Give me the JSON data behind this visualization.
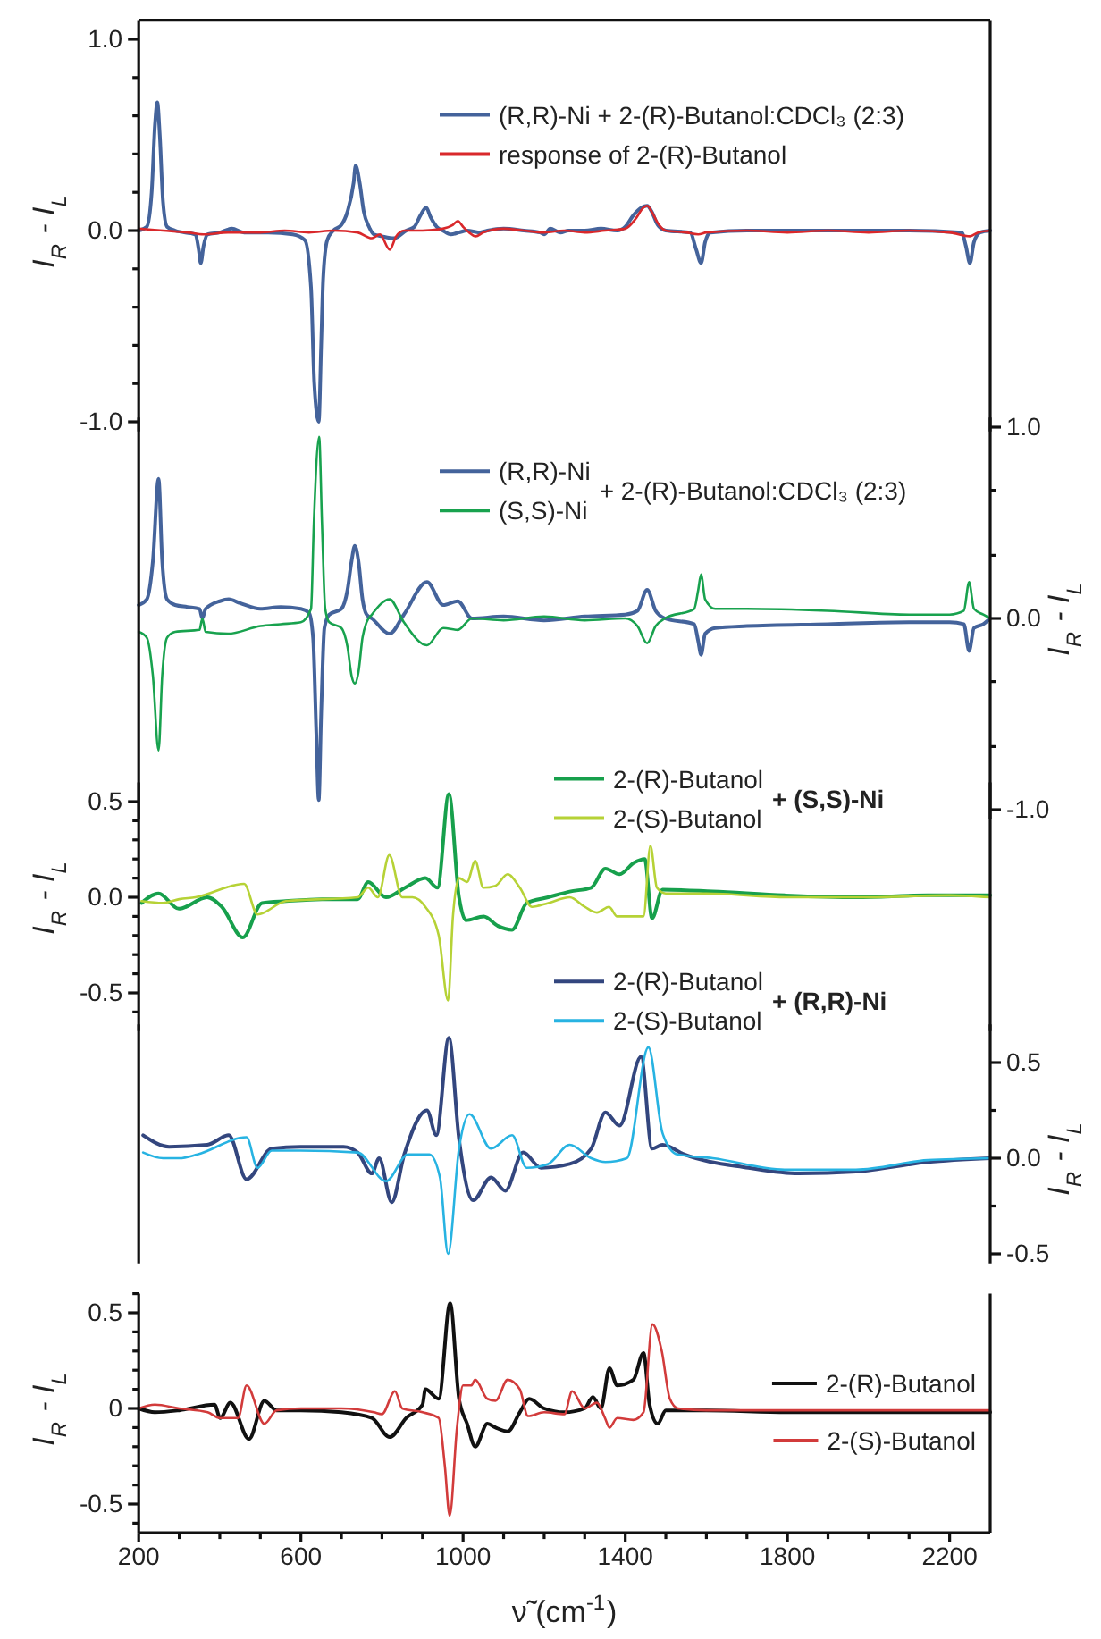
{
  "chart_data": [
    {
      "type": "line",
      "ylabel": "I$_{R}$ - I$_{L}$",
      "xlim": [
        200,
        2300
      ],
      "ylim": [
        -1.05,
        1.1
      ],
      "tick_labels": "y",
      "legend": "top right",
      "yticks": [
        {
          "value": -1.0,
          "label": "-1.0"
        },
        {
          "value": -0.8,
          "label": null
        },
        {
          "value": -0.6,
          "label": null
        },
        {
          "value": -0.4,
          "label": null
        },
        {
          "value": -0.2,
          "label": null
        },
        {
          "value": 0,
          "label": "0.0"
        },
        {
          "value": 0.2,
          "label": null
        },
        {
          "value": 0.4,
          "label": null
        },
        {
          "value": 0.6,
          "label": null
        },
        {
          "value": 0.8,
          "label": null
        },
        {
          "value": 1.0,
          "label": "1.0"
        }
      ],
      "series": [
        {
          "name": "(R,R)-Ni + 2-(R)-Butanol:CDCl₃ (2:3)",
          "color": "#44639b",
          "x": [
            200,
            220,
            232,
            240,
            246,
            252,
            260,
            270,
            290,
            340,
            348,
            353,
            360,
            370,
            400,
            430,
            460,
            520,
            580,
            610,
            625,
            633,
            644,
            650,
            655,
            665,
            680,
            700,
            715,
            730,
            735,
            745,
            755,
            768,
            780,
            800,
            830,
            860,
            880,
            895,
            909,
            920,
            935,
            950,
            970,
            990,
            1010,
            1040,
            1060,
            1100,
            1150,
            1190,
            1200,
            1215,
            1240,
            1260,
            1300,
            1340,
            1380,
            1400,
            1420,
            1440,
            1454,
            1465,
            1480,
            1500,
            1560,
            1575,
            1587,
            1597,
            1610,
            1700,
            1900,
            2100,
            2230,
            2240,
            2250,
            2260,
            2275,
            2300
          ],
          "values": [
            0.0,
            0.02,
            0.2,
            0.55,
            0.67,
            0.5,
            0.15,
            0.02,
            0.0,
            -0.02,
            -0.1,
            -0.17,
            -0.08,
            -0.02,
            -0.01,
            0.01,
            -0.01,
            -0.01,
            -0.02,
            -0.05,
            -0.3,
            -0.8,
            -1.0,
            -0.6,
            -0.25,
            -0.05,
            0.0,
            0.03,
            0.1,
            0.25,
            0.34,
            0.25,
            0.1,
            0.02,
            -0.02,
            -0.03,
            -0.04,
            0.0,
            0.02,
            0.08,
            0.12,
            0.07,
            0.02,
            0.0,
            -0.02,
            -0.01,
            0.0,
            -0.01,
            0.0,
            0.01,
            0.0,
            -0.01,
            -0.02,
            0.01,
            -0.01,
            0.0,
            0.0,
            0.01,
            0.0,
            0.02,
            0.08,
            0.12,
            0.13,
            0.1,
            0.03,
            0.0,
            -0.01,
            -0.1,
            -0.17,
            -0.06,
            -0.01,
            0.0,
            0.0,
            0.0,
            -0.01,
            -0.08,
            -0.17,
            -0.06,
            -0.01,
            0.0
          ]
        },
        {
          "name": "response of 2-(R)-Butanol",
          "color": "#d9282b",
          "x": [
            200,
            260,
            320,
            360,
            420,
            500,
            560,
            620,
            680,
            740,
            775,
            795,
            819,
            835,
            855,
            900,
            950,
            975,
            987,
            1000,
            1015,
            1031,
            1050,
            1100,
            1150,
            1200,
            1250,
            1300,
            1350,
            1400,
            1425,
            1445,
            1454,
            1465,
            1480,
            1500,
            1550,
            1580,
            1600,
            1700,
            1800,
            1900,
            2000,
            2100,
            2200,
            2250,
            2270,
            2300
          ],
          "values": [
            0.01,
            0.0,
            -0.01,
            -0.02,
            -0.01,
            -0.01,
            0.0,
            -0.01,
            0.0,
            -0.01,
            -0.04,
            -0.02,
            -0.1,
            -0.03,
            0.0,
            0.0,
            0.01,
            0.03,
            0.05,
            0.02,
            -0.01,
            -0.03,
            -0.01,
            0.01,
            0.0,
            -0.01,
            0.0,
            -0.01,
            0.0,
            0.01,
            0.06,
            0.12,
            0.13,
            0.1,
            0.04,
            0.0,
            -0.01,
            -0.02,
            -0.01,
            0.0,
            -0.01,
            0.0,
            -0.01,
            0.0,
            -0.01,
            -0.03,
            -0.01,
            0.0
          ]
        }
      ]
    },
    {
      "type": "line",
      "ylabel": "I$_{R}$ - I$_{L}$",
      "xlim": [
        200,
        2300
      ],
      "ylim": [
        -1.05,
        1.05
      ],
      "tick_labels": "y",
      "legend": "top",
      "annotations": [
        "+ 2-(R)-Butanol:CDCl₃ (2:3)"
      ],
      "yticks": [
        {
          "value": -1.0,
          "label": "-1.0"
        },
        {
          "value": -0.67,
          "label": null
        },
        {
          "value": -0.33,
          "label": null
        },
        {
          "value": 0,
          "label": "0.0"
        },
        {
          "value": 0.33,
          "label": null
        },
        {
          "value": 0.67,
          "label": null
        },
        {
          "value": 1.0,
          "label": "1.0"
        }
      ],
      "series": [
        {
          "name": "(R,R)-Ni",
          "color": "#44639b",
          "x": [
            200,
            220,
            235,
            249,
            258,
            270,
            290,
            320,
            350,
            357,
            365,
            400,
            422,
            450,
            500,
            550,
            600,
            620,
            630,
            638,
            644,
            650,
            658,
            670,
            700,
            715,
            725,
            733,
            742,
            752,
            762,
            775,
            819,
            854,
            911,
            951,
            987,
            1022,
            1100,
            1200,
            1300,
            1400,
            1430,
            1454,
            1475,
            1498,
            1570,
            1580,
            1587,
            1597,
            1622,
            1700,
            1900,
            2100,
            2200,
            2235,
            2248,
            2260,
            2283,
            2300
          ],
          "values": [
            0.07,
            0.1,
            0.3,
            0.73,
            0.3,
            0.1,
            0.07,
            0.06,
            0.05,
            0.0,
            0.05,
            0.09,
            0.1,
            0.08,
            0.05,
            0.06,
            0.05,
            0.03,
            -0.1,
            -0.6,
            -0.95,
            -0.5,
            -0.05,
            0.02,
            0.05,
            0.15,
            0.3,
            0.38,
            0.3,
            0.1,
            0.02,
            0.0,
            -0.08,
            0.02,
            0.19,
            0.07,
            0.09,
            0.0,
            0.01,
            -0.01,
            0.01,
            0.02,
            0.04,
            0.15,
            0.04,
            0.0,
            -0.03,
            -0.12,
            -0.19,
            -0.08,
            -0.05,
            -0.04,
            -0.03,
            -0.02,
            -0.02,
            -0.03,
            -0.17,
            -0.05,
            -0.03,
            0.0
          ]
        },
        {
          "name": "(S,S)-Ni",
          "color": "#18a24e",
          "x": [
            200,
            220,
            235,
            249,
            258,
            270,
            290,
            350,
            357,
            365,
            420,
            500,
            550,
            600,
            625,
            632,
            645,
            652,
            660,
            670,
            700,
            715,
            725,
            733,
            742,
            752,
            762,
            775,
            819,
            854,
            911,
            951,
            987,
            1022,
            1100,
            1200,
            1300,
            1400,
            1430,
            1454,
            1475,
            1498,
            1570,
            1580,
            1587,
            1597,
            1622,
            1700,
            1900,
            2100,
            2200,
            2235,
            2248,
            2260,
            2283,
            2300
          ],
          "values": [
            -0.07,
            -0.1,
            -0.3,
            -0.69,
            -0.3,
            -0.1,
            -0.07,
            -0.06,
            0.0,
            -0.07,
            -0.08,
            -0.04,
            -0.03,
            -0.02,
            0.05,
            0.5,
            0.95,
            0.5,
            0.05,
            -0.02,
            -0.05,
            -0.15,
            -0.3,
            -0.34,
            -0.28,
            -0.1,
            -0.02,
            0.02,
            0.1,
            -0.02,
            -0.14,
            -0.05,
            -0.06,
            0.0,
            -0.01,
            0.01,
            -0.01,
            0.0,
            -0.04,
            -0.13,
            -0.04,
            0.0,
            0.05,
            0.15,
            0.23,
            0.1,
            0.05,
            0.05,
            0.04,
            0.02,
            0.02,
            0.04,
            0.19,
            0.05,
            0.02,
            0.0
          ]
        }
      ]
    },
    {
      "type": "line",
      "ylabel": "I$_{R}$ - I$_{L}$",
      "xlim": [
        200,
        2300
      ],
      "ylim": [
        -0.7,
        0.6
      ],
      "tick_labels": "y",
      "legend": "top right",
      "annotations": [
        "+ (S,S)-Ni"
      ],
      "yticks": [
        {
          "value": -0.6,
          "label": null
        },
        {
          "value": -0.5,
          "label": "-0.5"
        },
        {
          "value": -0.4,
          "label": null
        },
        {
          "value": -0.3,
          "label": null
        },
        {
          "value": -0.2,
          "label": null
        },
        {
          "value": -0.1,
          "label": null
        },
        {
          "value": 0,
          "label": "0.0"
        },
        {
          "value": 0.1,
          "label": null
        },
        {
          "value": 0.2,
          "label": null
        },
        {
          "value": 0.3,
          "label": null
        },
        {
          "value": 0.4,
          "label": null
        },
        {
          "value": 0.5,
          "label": "0.5"
        }
      ],
      "series": [
        {
          "name": "2-(R)-Butanol",
          "color": "#17a04c",
          "x": [
            207,
            249,
            299,
            369,
            405,
            457,
            504,
            563,
            652,
            740,
            766,
            810,
            857,
            907,
            937,
            965,
            990,
            1007,
            1051,
            1086,
            1121,
            1157,
            1210,
            1263,
            1316,
            1351,
            1386,
            1421,
            1448,
            1466,
            1492,
            1616,
            1793,
            1969,
            2146,
            2300
          ],
          "values": [
            -0.03,
            0.02,
            -0.06,
            0.0,
            -0.05,
            -0.21,
            -0.03,
            -0.02,
            -0.01,
            -0.01,
            0.08,
            0.0,
            0.05,
            0.1,
            0.05,
            0.54,
            0.0,
            -0.12,
            -0.1,
            -0.15,
            -0.17,
            -0.03,
            0.0,
            0.03,
            0.05,
            0.15,
            0.12,
            0.18,
            0.2,
            -0.11,
            0.04,
            0.03,
            0.01,
            0.0,
            0.01,
            0.01
          ]
        },
        {
          "name": "2-(S)-Butanol",
          "color": "#b6d236",
          "x": [
            207,
            260,
            300,
            340,
            460,
            493,
            563,
            740,
            766,
            790,
            818,
            850,
            875,
            907,
            940,
            963,
            975,
            990,
            1010,
            1030,
            1050,
            1080,
            1110,
            1140,
            1170,
            1210,
            1263,
            1300,
            1330,
            1360,
            1380,
            1420,
            1445,
            1462,
            1478,
            1500,
            1600,
            1800,
            2000,
            2200,
            2300
          ],
          "values": [
            -0.02,
            -0.03,
            -0.01,
            0.0,
            0.07,
            -0.09,
            -0.02,
            0.0,
            0.05,
            0.0,
            0.22,
            0.0,
            0.0,
            -0.05,
            -0.2,
            -0.54,
            -0.1,
            0.1,
            0.08,
            0.19,
            0.05,
            0.06,
            0.12,
            0.05,
            -0.05,
            -0.03,
            0.0,
            -0.05,
            -0.08,
            -0.05,
            -0.1,
            -0.1,
            -0.1,
            0.27,
            0.05,
            0.02,
            0.02,
            0.0,
            0.0,
            0.01,
            0.0
          ]
        }
      ]
    },
    {
      "type": "line",
      "ylabel": "I$_{R}$ - I$_{L}$",
      "xlim": [
        200,
        2300
      ],
      "ylim": [
        -0.55,
        0.7
      ],
      "tick_labels": "y",
      "legend": "top right",
      "annotations": [
        "+ (R,R)-Ni"
      ],
      "yticks": [
        {
          "value": -0.5,
          "label": "-0.5"
        },
        {
          "value": -0.25,
          "label": null
        },
        {
          "value": 0,
          "label": "0.0"
        },
        {
          "value": 0.25,
          "label": null
        },
        {
          "value": 0.5,
          "label": "0.5"
        }
      ],
      "series": [
        {
          "name": "2-(R)-Butanol",
          "color": "#33467e",
          "x": [
            211,
            275,
            369,
            422,
            466,
            528,
            599,
            705,
            740,
            775,
            793,
            824,
            855,
            911,
            934,
            965,
            990,
            1025,
            1069,
            1104,
            1148,
            1192,
            1263,
            1316,
            1351,
            1386,
            1439,
            1466,
            1492,
            1545,
            1704,
            1828,
            1969,
            2146,
            2300
          ],
          "values": [
            0.12,
            0.06,
            0.07,
            0.12,
            -0.11,
            0.05,
            0.06,
            0.06,
            0.03,
            -0.08,
            0.0,
            -0.23,
            0.02,
            0.25,
            0.12,
            0.63,
            0.1,
            -0.22,
            -0.1,
            -0.17,
            0.03,
            -0.05,
            -0.03,
            0.05,
            0.24,
            0.17,
            0.53,
            0.05,
            0.07,
            0.02,
            -0.05,
            -0.08,
            -0.07,
            -0.02,
            0.0
          ]
        },
        {
          "name": "2-(S)-Butanol",
          "color": "#27b3e2",
          "x": [
            211,
            260,
            300,
            345,
            466,
            493,
            528,
            599,
            740,
            810,
            864,
            917,
            943,
            963,
            990,
            1016,
            1069,
            1121,
            1157,
            1210,
            1263,
            1316,
            1351,
            1404,
            1457,
            1492,
            1528,
            1616,
            1793,
            1969,
            2146,
            2300
          ],
          "values": [
            0.03,
            0.0,
            0.0,
            0.02,
            0.11,
            -0.05,
            0.04,
            0.04,
            0.03,
            -0.12,
            0.02,
            0.02,
            -0.1,
            -0.5,
            0.05,
            0.23,
            0.05,
            0.12,
            -0.05,
            -0.03,
            0.07,
            0.0,
            -0.02,
            0.0,
            0.58,
            0.13,
            0.02,
            0.0,
            -0.06,
            -0.06,
            -0.01,
            0.0
          ]
        }
      ]
    },
    {
      "type": "line",
      "ylabel": "I$_{R}$ - I$_{L}$",
      "xlabel": "ν̃ (cm$^{-1}$)",
      "xlim": [
        200,
        2300
      ],
      "ylim": [
        -0.65,
        0.6
      ],
      "legend": "right",
      "xticks": [
        200,
        {
          "value": 300,
          "label": null
        },
        {
          "value": 400,
          "label": null
        },
        {
          "value": 500,
          "label": null
        },
        600,
        {
          "value": 700,
          "label": null
        },
        {
          "value": 800,
          "label": null
        },
        {
          "value": 900,
          "label": null
        },
        1000,
        {
          "value": 1100,
          "label": null
        },
        {
          "value": 1200,
          "label": null
        },
        {
          "value": 1300,
          "label": null
        },
        1400,
        {
          "value": 1500,
          "label": null
        },
        {
          "value": 1600,
          "label": null
        },
        {
          "value": 1700,
          "label": null
        },
        1800,
        {
          "value": 1900,
          "label": null
        },
        {
          "value": 2000,
          "label": null
        },
        {
          "value": 2100,
          "label": null
        },
        2200
      ],
      "yticks": [
        {
          "value": -0.6,
          "label": null
        },
        {
          "value": -0.5,
          "label": "-0.5"
        },
        {
          "value": -0.4,
          "label": null
        },
        {
          "value": -0.3,
          "label": null
        },
        {
          "value": -0.2,
          "label": null
        },
        {
          "value": -0.1,
          "label": null
        },
        0,
        {
          "value": 0.1,
          "label": null
        },
        {
          "value": 0.2,
          "label": null
        },
        {
          "value": 0.3,
          "label": null
        },
        {
          "value": 0.4,
          "label": null
        },
        {
          "value": 0.5,
          "label": "0.5"
        },
        {
          "value": 0.6,
          "label": null
        }
      ],
      "series": [
        {
          "name": "2-(R)-Butanol",
          "color": "#111111",
          "x": [
            200,
            240,
            300,
            387,
            401,
            426,
            472,
            510,
            540,
            600,
            700,
            775,
            819,
            860,
            900,
            907,
            940,
            968,
            990,
            1010,
            1030,
            1060,
            1080,
            1110,
            1140,
            1163,
            1200,
            1250,
            1300,
            1320,
            1340,
            1361,
            1380,
            1420,
            1445,
            1460,
            1480,
            1500,
            1600,
            1800,
            2000,
            2300
          ],
          "values": [
            0.0,
            -0.02,
            -0.01,
            0.02,
            -0.05,
            0.03,
            -0.16,
            0.04,
            -0.01,
            -0.01,
            -0.02,
            -0.05,
            -0.15,
            -0.05,
            0.02,
            0.1,
            0.05,
            0.55,
            0.05,
            -0.08,
            -0.2,
            -0.08,
            -0.1,
            -0.12,
            -0.02,
            0.05,
            0.0,
            -0.02,
            0.0,
            0.06,
            0.0,
            0.21,
            0.12,
            0.15,
            0.29,
            0.02,
            -0.08,
            -0.01,
            -0.01,
            -0.02,
            -0.02,
            -0.02
          ]
        },
        {
          "name": "2-(S)-Butanol",
          "color": "#d23b3b",
          "x": [
            200,
            240,
            300,
            370,
            400,
            445,
            466,
            510,
            540,
            600,
            700,
            780,
            800,
            832,
            850,
            900,
            940,
            955,
            967,
            985,
            1000,
            1020,
            1030,
            1060,
            1080,
            1110,
            1140,
            1160,
            1200,
            1250,
            1269,
            1300,
            1330,
            1350,
            1361,
            1380,
            1420,
            1445,
            1467,
            1490,
            1510,
            1530,
            1600,
            2300
          ],
          "values": [
            0.0,
            0.02,
            0.0,
            -0.02,
            -0.05,
            -0.05,
            0.12,
            -0.08,
            -0.01,
            0.0,
            0.0,
            -0.02,
            -0.03,
            0.09,
            0.0,
            -0.02,
            -0.05,
            -0.3,
            -0.56,
            -0.1,
            0.12,
            0.12,
            0.15,
            0.05,
            0.04,
            0.15,
            0.1,
            -0.04,
            -0.02,
            -0.03,
            0.09,
            0.0,
            0.03,
            -0.05,
            -0.1,
            -0.05,
            -0.06,
            -0.02,
            0.44,
            0.3,
            0.05,
            0.0,
            -0.01,
            -0.01
          ]
        }
      ]
    }
  ]
}
